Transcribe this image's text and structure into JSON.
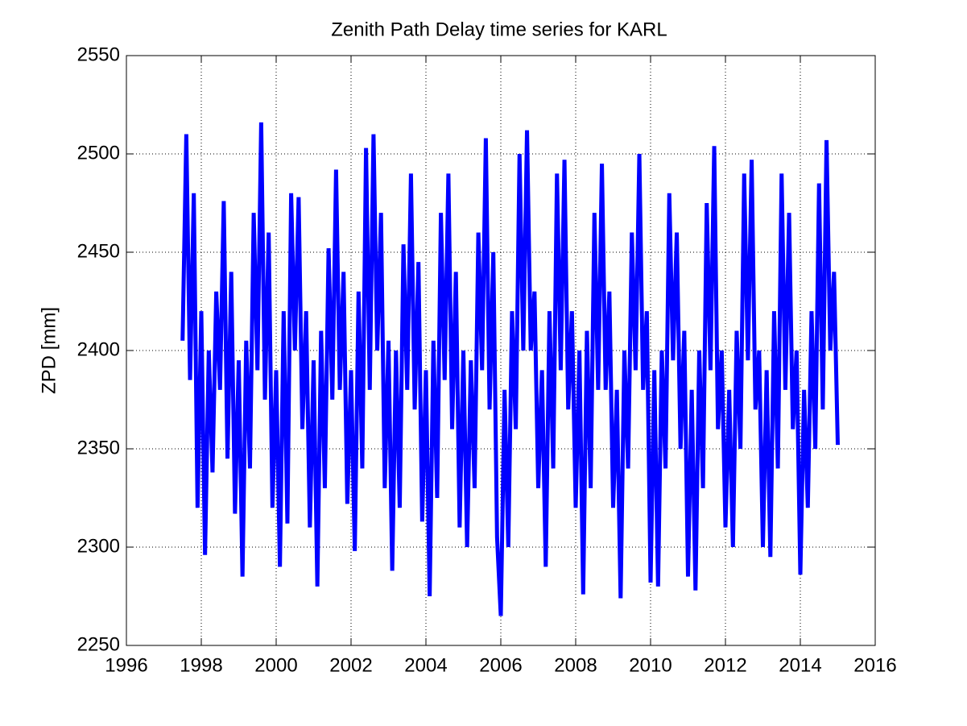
{
  "chart_data": {
    "type": "line",
    "title": "Zenith Path Delay time series for KARL",
    "y_label": "ZPD [mm]",
    "color": "#0000ff",
    "grid": true,
    "xlim": [
      1996,
      2016
    ],
    "xticks": [
      1996,
      1998,
      2000,
      2002,
      2004,
      2006,
      2008,
      2010,
      2012,
      2014,
      2016
    ],
    "ylim": [
      2250,
      2550
    ],
    "yticks": [
      2250,
      2300,
      2350,
      2400,
      2450,
      2500,
      2550
    ],
    "x": [
      1997.5,
      1997.6,
      1997.7,
      1997.8,
      1997.9,
      1998.0,
      1998.1,
      1998.2,
      1998.3,
      1998.4,
      1998.5,
      1998.6,
      1998.7,
      1998.8,
      1998.9,
      1999.0,
      1999.1,
      1999.2,
      1999.3,
      1999.4,
      1999.5,
      1999.6,
      1999.7,
      1999.8,
      1999.9,
      2000.0,
      2000.1,
      2000.2,
      2000.3,
      2000.4,
      2000.5,
      2000.6,
      2000.7,
      2000.8,
      2000.9,
      2001.0,
      2001.1,
      2001.2,
      2001.3,
      2001.4,
      2001.5,
      2001.6,
      2001.7,
      2001.8,
      2001.9,
      2002.0,
      2002.1,
      2002.2,
      2002.3,
      2002.4,
      2002.5,
      2002.6,
      2002.7,
      2002.8,
      2002.9,
      2003.0,
      2003.1,
      2003.2,
      2003.3,
      2003.4,
      2003.5,
      2003.6,
      2003.7,
      2003.8,
      2003.9,
      2004.0,
      2004.1,
      2004.2,
      2004.3,
      2004.4,
      2004.5,
      2004.6,
      2004.7,
      2004.8,
      2004.9,
      2005.0,
      2005.1,
      2005.2,
      2005.3,
      2005.4,
      2005.5,
      2005.6,
      2005.7,
      2005.8,
      2005.9,
      2006.0,
      2006.1,
      2006.2,
      2006.3,
      2006.4,
      2006.5,
      2006.6,
      2006.7,
      2006.8,
      2006.9,
      2007.0,
      2007.1,
      2007.2,
      2007.3,
      2007.4,
      2007.5,
      2007.6,
      2007.7,
      2007.8,
      2007.9,
      2008.0,
      2008.1,
      2008.2,
      2008.3,
      2008.4,
      2008.5,
      2008.6,
      2008.7,
      2008.8,
      2008.9,
      2009.0,
      2009.1,
      2009.2,
      2009.3,
      2009.4,
      2009.5,
      2009.6,
      2009.7,
      2009.8,
      2009.9,
      2010.0,
      2010.1,
      2010.2,
      2010.3,
      2010.4,
      2010.5,
      2010.6,
      2010.7,
      2010.8,
      2010.9,
      2011.0,
      2011.1,
      2011.2,
      2011.3,
      2011.4,
      2011.5,
      2011.6,
      2011.7,
      2011.8,
      2011.9,
      2012.0,
      2012.1,
      2012.2,
      2012.3,
      2012.4,
      2012.5,
      2012.6,
      2012.7,
      2012.8,
      2012.9,
      2013.0,
      2013.1,
      2013.2,
      2013.3,
      2013.4,
      2013.5,
      2013.6,
      2013.7,
      2013.8,
      2013.9,
      2014.0,
      2014.1,
      2014.2,
      2014.3,
      2014.4,
      2014.5,
      2014.6,
      2014.7,
      2014.8,
      2014.9,
      2015.0
    ],
    "values": [
      2405,
      2510,
      2385,
      2480,
      2320,
      2420,
      2296,
      2400,
      2338,
      2430,
      2380,
      2476,
      2345,
      2440,
      2317,
      2395,
      2285,
      2405,
      2340,
      2470,
      2390,
      2516,
      2375,
      2460,
      2320,
      2390,
      2290,
      2420,
      2312,
      2480,
      2400,
      2478,
      2360,
      2420,
      2310,
      2395,
      2280,
      2410,
      2330,
      2452,
      2375,
      2492,
      2380,
      2440,
      2322,
      2390,
      2298,
      2430,
      2340,
      2503,
      2380,
      2510,
      2400,
      2470,
      2330,
      2405,
      2288,
      2400,
      2320,
      2454,
      2380,
      2490,
      2370,
      2445,
      2313,
      2390,
      2275,
      2405,
      2325,
      2470,
      2385,
      2490,
      2360,
      2440,
      2310,
      2400,
      2300,
      2395,
      2330,
      2460,
      2390,
      2508,
      2370,
      2450,
      2305,
      2265,
      2380,
      2300,
      2420,
      2360,
      2500,
      2400,
      2512,
      2400,
      2430,
      2330,
      2390,
      2290,
      2420,
      2340,
      2490,
      2390,
      2497,
      2370,
      2420,
      2320,
      2400,
      2276,
      2410,
      2330,
      2470,
      2380,
      2495,
      2380,
      2430,
      2320,
      2380,
      2274,
      2400,
      2340,
      2460,
      2390,
      2500,
      2380,
      2420,
      2282,
      2390,
      2280,
      2400,
      2340,
      2480,
      2395,
      2460,
      2350,
      2410,
      2285,
      2380,
      2278,
      2400,
      2330,
      2475,
      2390,
      2504,
      2360,
      2400,
      2310,
      2380,
      2300,
      2410,
      2350,
      2490,
      2395,
      2497,
      2370,
      2400,
      2300,
      2390,
      2295,
      2420,
      2340,
      2490,
      2380,
      2470,
      2360,
      2400,
      2286,
      2380,
      2320,
      2420,
      2350,
      2485,
      2370,
      2507,
      2400,
      2440,
      2352
    ]
  }
}
